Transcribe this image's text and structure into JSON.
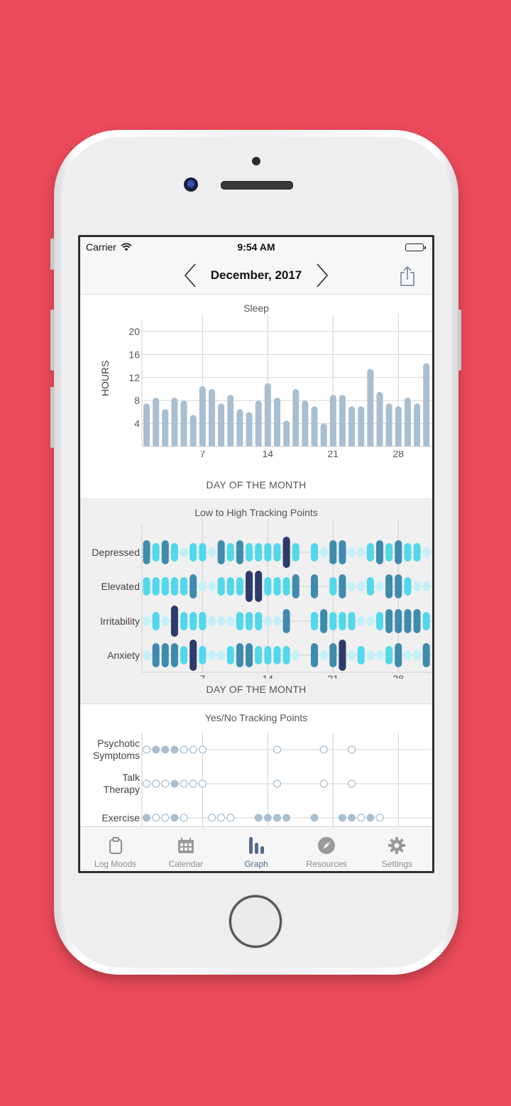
{
  "status_bar": {
    "carrier": "Carrier",
    "time": "9:54 AM",
    "battery": "full"
  },
  "nav": {
    "title": "December, 2017",
    "prev_icon": "chevron-left-icon",
    "next_icon": "chevron-right-icon",
    "share_icon": "share-icon"
  },
  "colors": {
    "background": "#EC4B5B",
    "sleep_bar": "#A9BFD1",
    "level_1": "#C3F1FA",
    "level_2": "#52D8EC",
    "level_3": "#3F8BAE",
    "level_4": "#2D3A6B",
    "yesno": "#A9BFD1",
    "active_tab": "#546A8D"
  },
  "chart_data": [
    {
      "type": "bar",
      "title": "Sleep",
      "xlabel": "DAY OF THE MONTH",
      "ylabel": "HOURS",
      "ylim": [
        0,
        24
      ],
      "yticks": [
        4,
        8,
        12,
        16,
        20
      ],
      "xticks": [
        7,
        14,
        21,
        28
      ],
      "grid": true,
      "categories": [
        1,
        2,
        3,
        4,
        5,
        6,
        7,
        8,
        9,
        10,
        11,
        12,
        13,
        14,
        15,
        16,
        17,
        18,
        19,
        20,
        21,
        22,
        23,
        24,
        25,
        26,
        27,
        28,
        29,
        30,
        31
      ],
      "values": [
        7.5,
        8.5,
        6.5,
        8.5,
        8,
        5.5,
        10.5,
        10,
        7.5,
        9,
        6.5,
        6,
        8,
        11,
        8.5,
        4.5,
        10,
        8,
        7,
        4,
        9,
        9,
        7,
        7,
        13.5,
        9.5,
        7.5,
        7,
        8.5,
        7.5,
        14.5
      ]
    },
    {
      "type": "heatmap",
      "title": "Low to High Tracking Points",
      "xlabel": "DAY OF THE MONTH",
      "xticks": [
        7,
        14,
        21,
        28
      ],
      "levels": "0 = none, 1 = low, 2 = mild, 3 = moderate, 4 = high",
      "categories": [
        1,
        2,
        3,
        4,
        5,
        6,
        7,
        8,
        9,
        10,
        11,
        12,
        13,
        14,
        15,
        16,
        17,
        18,
        19,
        20,
        21,
        22,
        23,
        24,
        25,
        26,
        27,
        28,
        29,
        30,
        31
      ],
      "series": [
        {
          "name": "Depressed",
          "values": [
            3,
            2,
            3,
            2,
            1,
            2,
            2,
            1,
            3,
            2,
            3,
            2,
            2,
            2,
            2,
            4,
            2,
            0,
            2,
            1,
            3,
            3,
            1,
            1,
            2,
            3,
            2,
            3,
            2,
            2,
            1
          ]
        },
        {
          "name": "Elevated",
          "values": [
            2,
            2,
            2,
            2,
            2,
            3,
            1,
            1,
            2,
            2,
            2,
            4,
            4,
            2,
            2,
            2,
            3,
            0,
            3,
            0,
            2,
            3,
            1,
            1,
            2,
            1,
            3,
            3,
            2,
            1,
            1
          ]
        },
        {
          "name": "Irritability",
          "values": [
            1,
            2,
            1,
            4,
            2,
            2,
            2,
            1,
            1,
            1,
            2,
            2,
            2,
            1,
            1,
            3,
            0,
            0,
            2,
            3,
            2,
            2,
            2,
            1,
            1,
            2,
            3,
            3,
            3,
            3,
            2
          ]
        },
        {
          "name": "Anxiety",
          "values": [
            1,
            3,
            3,
            3,
            2,
            4,
            2,
            1,
            1,
            2,
            3,
            3,
            2,
            2,
            2,
            2,
            1,
            0,
            3,
            1,
            3,
            4,
            1,
            2,
            1,
            1,
            2,
            3,
            1,
            1,
            3
          ]
        }
      ]
    },
    {
      "type": "scatter",
      "title": "Yes/No Tracking Points",
      "xticks": [
        7,
        14,
        21,
        28
      ],
      "values_legend": "1 = yes (filled), 0 = no (open), null = not logged",
      "categories": [
        1,
        2,
        3,
        4,
        5,
        6,
        7,
        8,
        9,
        10,
        11,
        12,
        13,
        14,
        15,
        16,
        17,
        18,
        19,
        20,
        21,
        22,
        23,
        24,
        25,
        26,
        27,
        28,
        29,
        30,
        31
      ],
      "series": [
        {
          "name": "Psychotic Symptoms",
          "label_lines": [
            "Psychotic",
            "Symptoms"
          ],
          "values": [
            0,
            1,
            1,
            1,
            0,
            0,
            0,
            null,
            null,
            null,
            null,
            null,
            null,
            null,
            0,
            null,
            null,
            null,
            null,
            0,
            null,
            null,
            0,
            null,
            null,
            null,
            null,
            null,
            null,
            null,
            null
          ]
        },
        {
          "name": "Talk Therapy",
          "label_lines": [
            "Talk",
            "Therapy"
          ],
          "values": [
            0,
            0,
            0,
            1,
            0,
            0,
            0,
            null,
            null,
            null,
            null,
            null,
            null,
            null,
            0,
            null,
            null,
            null,
            null,
            0,
            null,
            null,
            0,
            null,
            null,
            null,
            null,
            null,
            null,
            null,
            null
          ]
        },
        {
          "name": "Exercise",
          "label_lines": [
            "Exercise"
          ],
          "values": [
            1,
            0,
            0,
            1,
            0,
            null,
            null,
            0,
            0,
            0,
            null,
            null,
            1,
            1,
            1,
            1,
            null,
            null,
            1,
            null,
            null,
            1,
            1,
            0,
            1,
            0,
            null,
            null,
            null,
            null,
            null
          ]
        }
      ]
    }
  ],
  "tabs": [
    {
      "label": "Log Moods",
      "icon": "clipboard-icon",
      "active": false
    },
    {
      "label": "Calendar",
      "icon": "calendar-icon",
      "active": false
    },
    {
      "label": "Graph",
      "icon": "bar-graph-icon",
      "active": true
    },
    {
      "label": "Resources",
      "icon": "compass-icon",
      "active": false
    },
    {
      "label": "Settings",
      "icon": "gear-icon",
      "active": false
    }
  ]
}
